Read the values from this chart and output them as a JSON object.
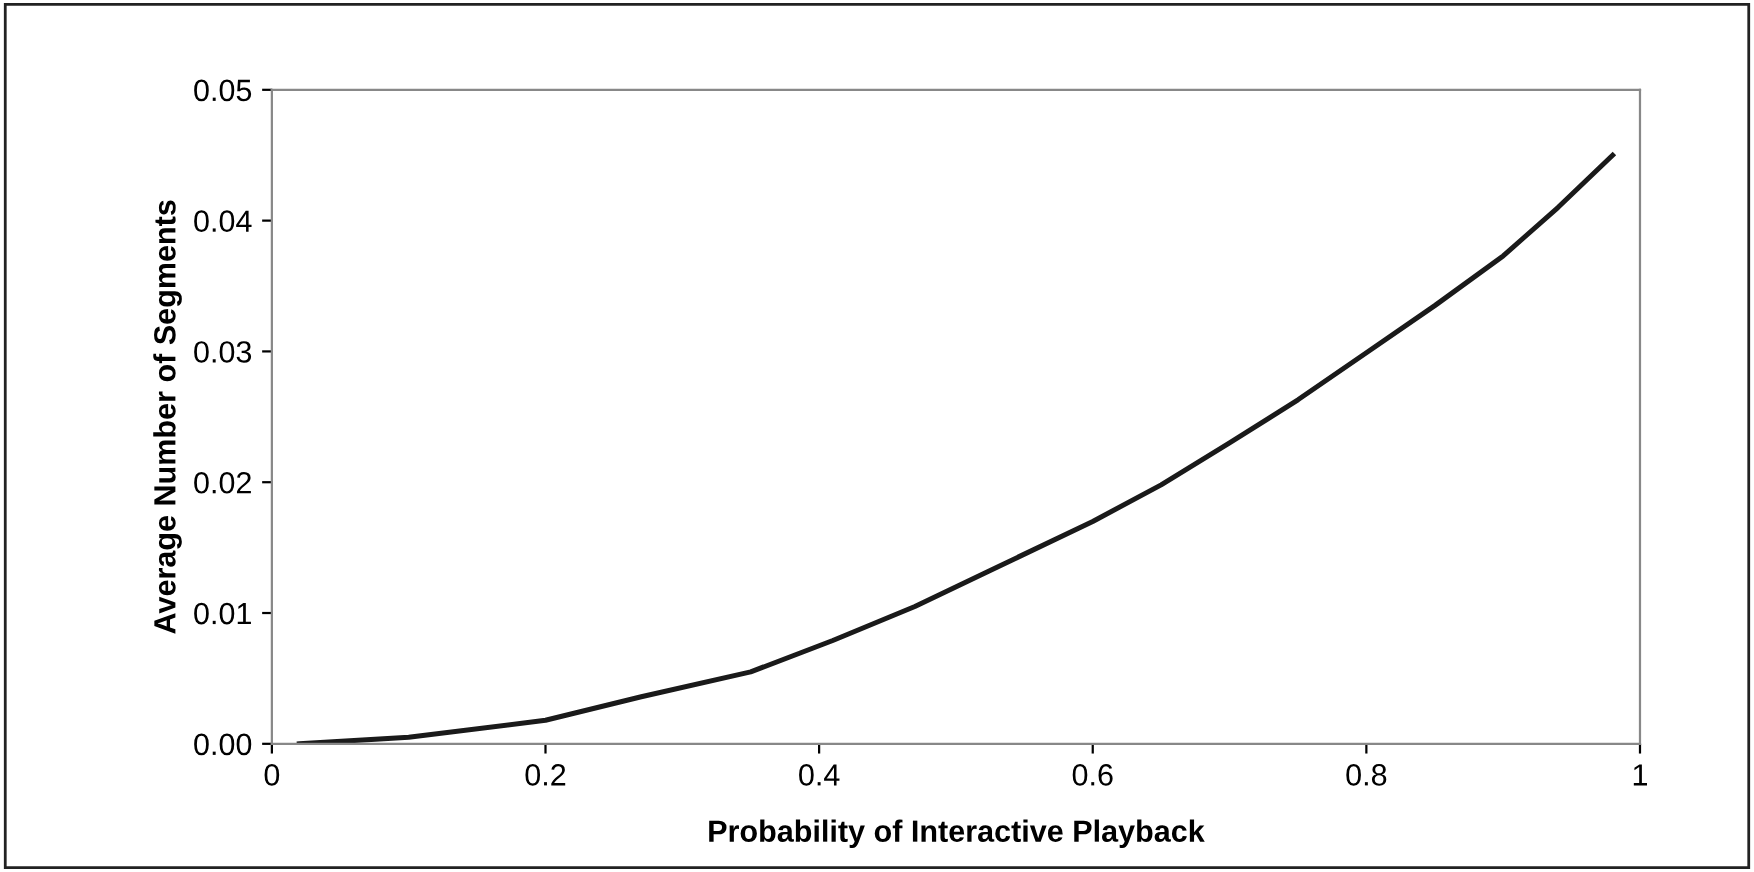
{
  "chart_data": {
    "type": "line",
    "xlabel": "Probability of Interactive Playback",
    "ylabel": "Average Number of Segments",
    "x": [
      0.02,
      0.1,
      0.2,
      0.27,
      0.35,
      0.41,
      0.47,
      0.53,
      0.6,
      0.65,
      0.7,
      0.75,
      0.8,
      0.85,
      0.9,
      0.94,
      0.98
    ],
    "series": [
      {
        "color": "#1a1a1a",
        "values": [
          0.0,
          0.0005,
          0.0018,
          0.0036,
          0.0055,
          0.0079,
          0.0105,
          0.0135,
          0.017,
          0.0198,
          0.023,
          0.0263,
          0.0299,
          0.0335,
          0.0373,
          0.041,
          0.045
        ]
      }
    ],
    "xlim": [
      0,
      1
    ],
    "xticks": [
      0,
      0.2,
      0.4,
      0.6,
      0.8,
      1
    ],
    "ylim": [
      0,
      0.05
    ],
    "yticks": [
      {
        "value": 0,
        "label": "0.00"
      },
      0.01,
      0.02,
      0.03,
      0.04,
      0.05
    ],
    "grid": false,
    "legend": false,
    "marker": "none",
    "line_style": "solid"
  }
}
